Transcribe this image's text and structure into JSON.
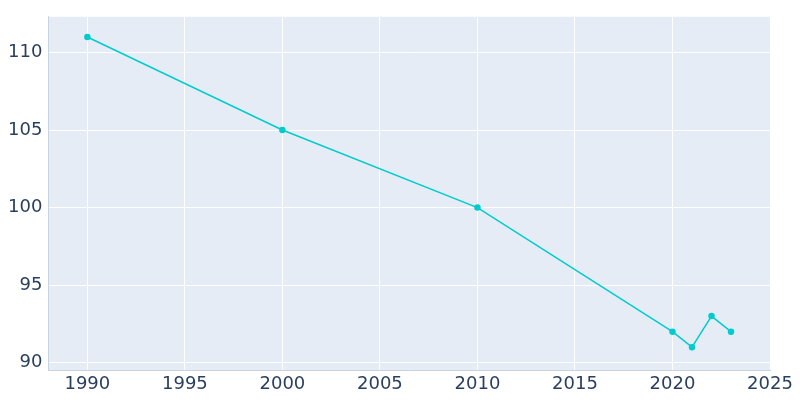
{
  "chart_data": {
    "type": "line",
    "x": [
      1990,
      2000,
      2010,
      2020,
      2021,
      2022,
      2023
    ],
    "values": [
      111,
      105,
      100,
      92,
      91,
      93,
      92
    ],
    "color": "#00cccc",
    "marker": "circle",
    "xlim": [
      1988,
      2025
    ],
    "xticks": [
      1990,
      1995,
      2000,
      2005,
      2010,
      2015,
      2020,
      2025
    ],
    "ylim": [
      89.5,
      112.3
    ],
    "yticks": [
      90,
      95,
      100,
      105,
      110
    ],
    "grid": true
  }
}
